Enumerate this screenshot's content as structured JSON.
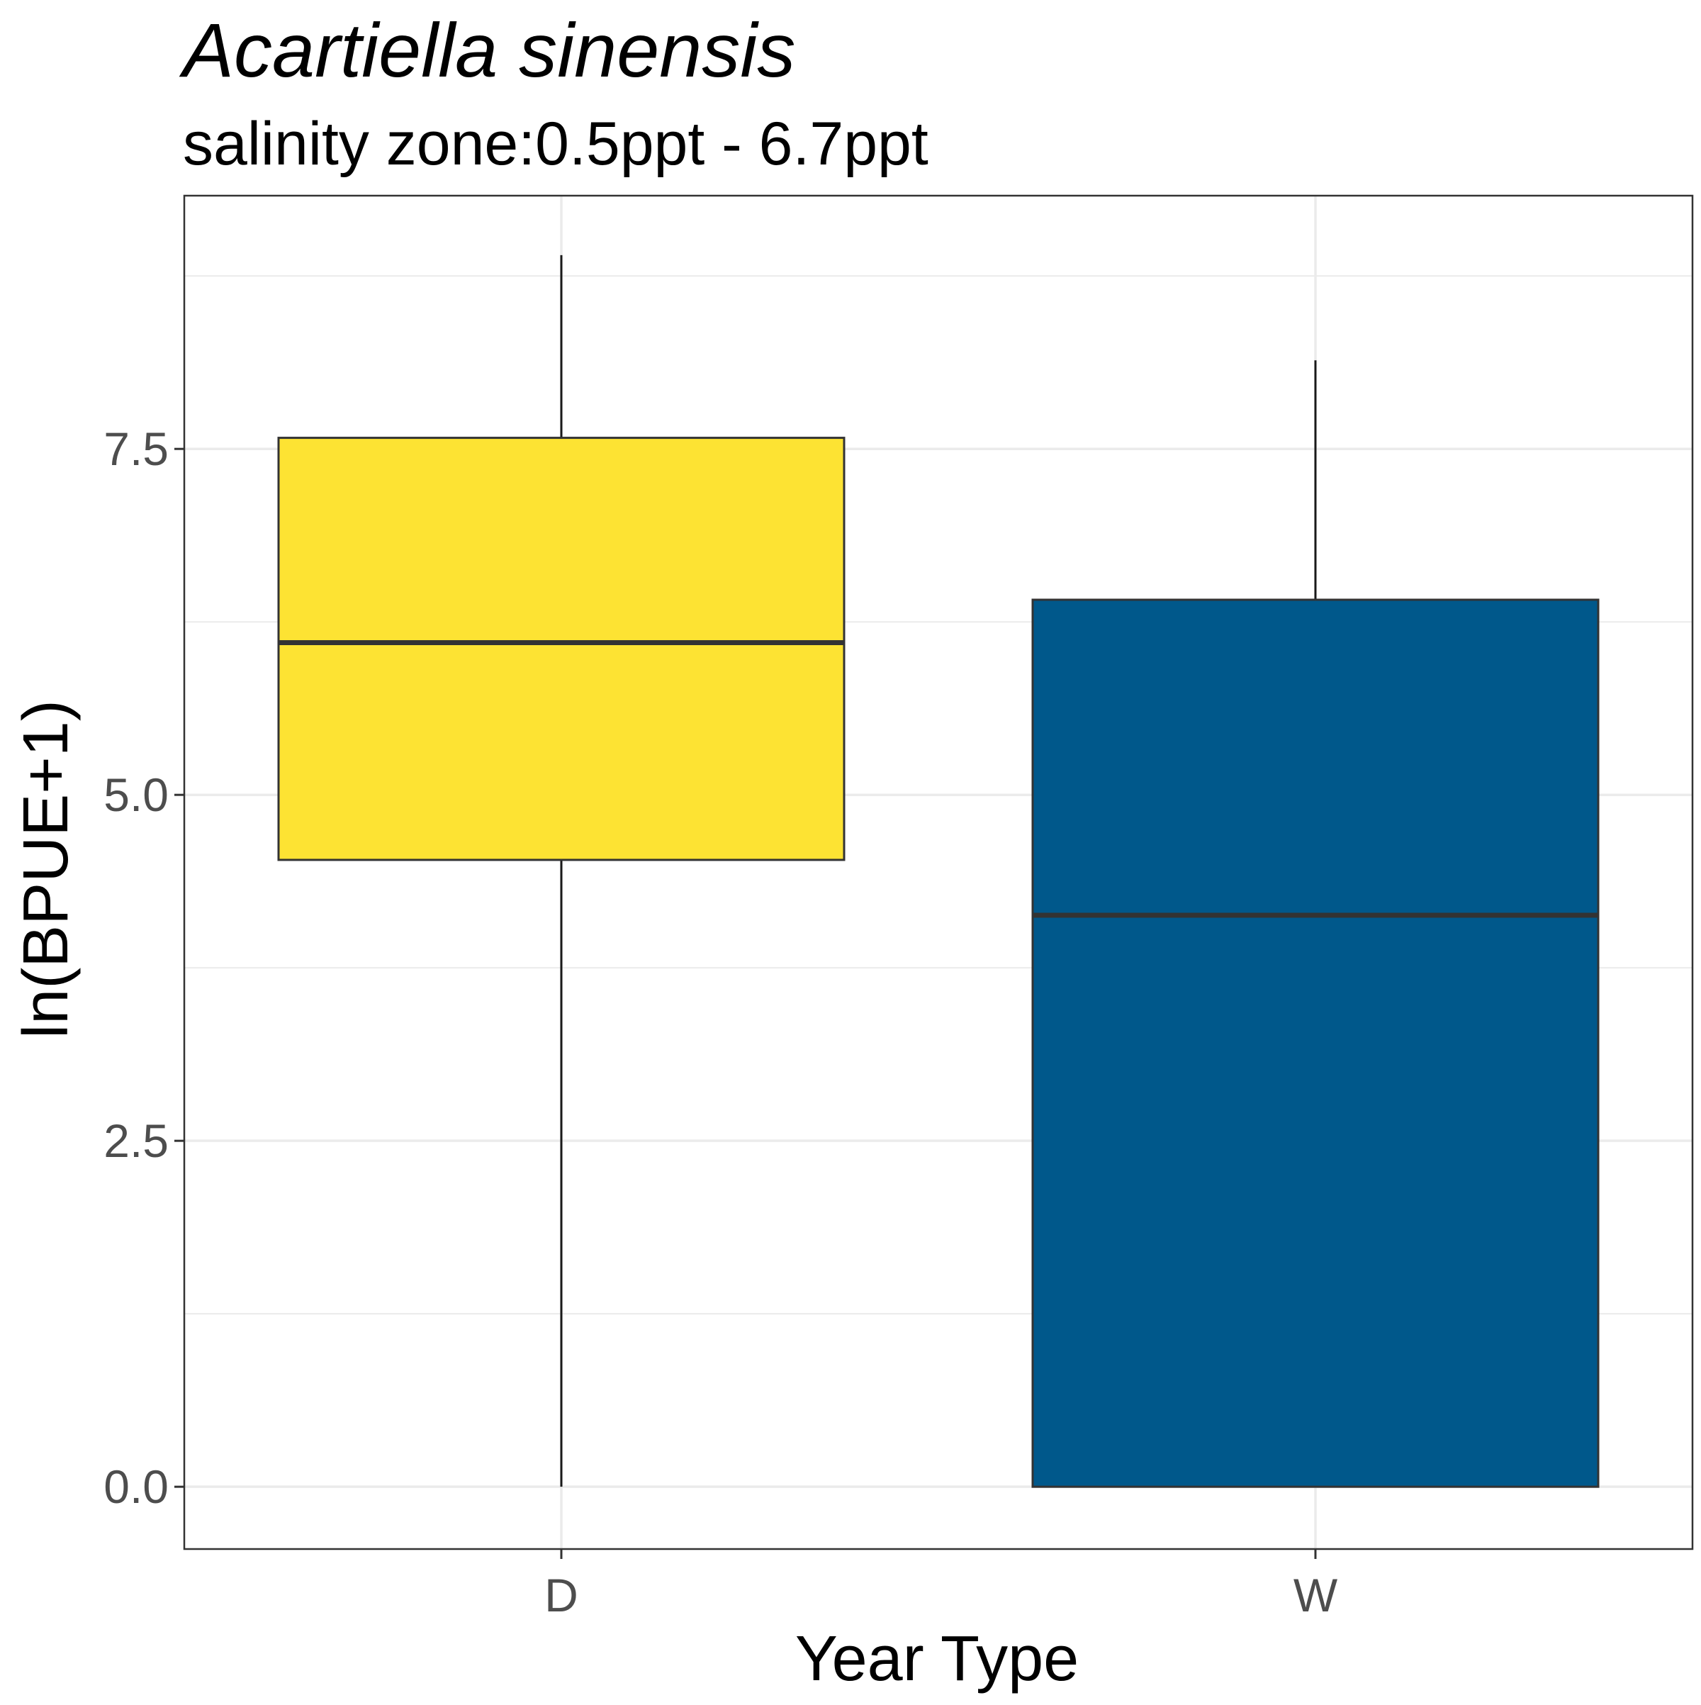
{
  "chart_data": {
    "type": "boxplot",
    "title": "Acartiella sinensis",
    "subtitle": "salinity zone:0.5ppt - 6.7ppt",
    "xlabel": "Year Type",
    "ylabel": "ln(BPUE+1)",
    "categories": [
      "D",
      "W"
    ],
    "ylim": [
      -0.45,
      9.33
    ],
    "yticks": [
      0.0,
      2.5,
      5.0,
      7.5
    ],
    "ytick_labels": [
      "0.0",
      "2.5",
      "5.0",
      "7.5"
    ],
    "grid": true,
    "boxes": [
      {
        "category": "D",
        "min": 0.0,
        "q1": 4.53,
        "median": 6.1,
        "q3": 7.58,
        "max": 8.9,
        "color": "#FDE333"
      },
      {
        "category": "W",
        "min": 0.0,
        "q1": 0.0,
        "median": 4.13,
        "q3": 6.41,
        "max": 8.14,
        "color": "#00588B"
      }
    ]
  }
}
